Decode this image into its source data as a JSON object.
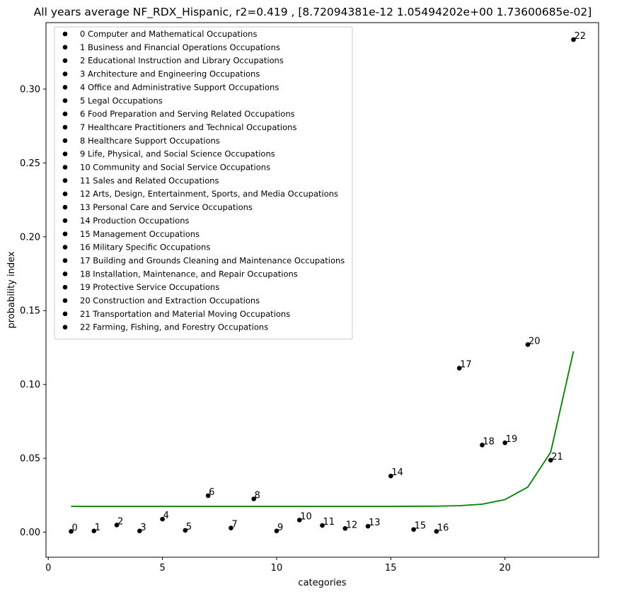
{
  "chart_data": {
    "type": "scatter",
    "title": "All years average NF_RDX_Hispanic, r2=0.419 , [8.72094381e-12 1.05494202e+00 1.73600685e-02]",
    "xlabel": "categories",
    "ylabel": "probability index",
    "xlim": [
      -0.1,
      24.1
    ],
    "ylim": [
      -0.017,
      0.345
    ],
    "xticks": [
      0,
      5,
      10,
      15,
      20
    ],
    "yticks": [
      0.0,
      0.05,
      0.1,
      0.15,
      0.2,
      0.25,
      0.3
    ],
    "ytick_labels": [
      "0.00",
      "0.05",
      "0.10",
      "0.15",
      "0.20",
      "0.25",
      "0.30"
    ],
    "grid": false,
    "legend_position": "top-left",
    "marker_color": "#000000",
    "fit_color": "#008000",
    "points": [
      {
        "label": "0",
        "x": 1,
        "y": 0.0005
      },
      {
        "label": "1",
        "x": 2,
        "y": 0.0008
      },
      {
        "label": "2",
        "x": 3,
        "y": 0.0048
      },
      {
        "label": "3",
        "x": 4,
        "y": 0.0008
      },
      {
        "label": "4",
        "x": 5,
        "y": 0.0088
      },
      {
        "label": "5",
        "x": 6,
        "y": 0.0012
      },
      {
        "label": "6",
        "x": 7,
        "y": 0.0247
      },
      {
        "label": "7",
        "x": 8,
        "y": 0.0028
      },
      {
        "label": "8",
        "x": 9,
        "y": 0.0225
      },
      {
        "label": "9",
        "x": 10,
        "y": 0.0008
      },
      {
        "label": "10",
        "x": 11,
        "y": 0.0082
      },
      {
        "label": "11",
        "x": 12,
        "y": 0.0045
      },
      {
        "label": "12",
        "x": 13,
        "y": 0.0025
      },
      {
        "label": "13",
        "x": 14,
        "y": 0.004
      },
      {
        "label": "14",
        "x": 15,
        "y": 0.038
      },
      {
        "label": "15",
        "x": 16,
        "y": 0.0018
      },
      {
        "label": "16",
        "x": 17,
        "y": 0.0005
      },
      {
        "label": "17",
        "x": 18,
        "y": 0.111
      },
      {
        "label": "18",
        "x": 19,
        "y": 0.059
      },
      {
        "label": "19",
        "x": 20,
        "y": 0.0605
      },
      {
        "label": "20",
        "x": 21,
        "y": 0.127
      },
      {
        "label": "21",
        "x": 22,
        "y": 0.0487
      },
      {
        "label": "22",
        "x": 23,
        "y": 0.3335
      }
    ],
    "fit_line": {
      "x": [
        1,
        2,
        3,
        4,
        5,
        6,
        7,
        8,
        9,
        10,
        11,
        12,
        13,
        14,
        15,
        16,
        17,
        18,
        19,
        20,
        21,
        22,
        23
      ],
      "y": [
        0.0174,
        0.0174,
        0.0174,
        0.0174,
        0.0174,
        0.0174,
        0.0174,
        0.0174,
        0.0174,
        0.0174,
        0.0174,
        0.0174,
        0.0174,
        0.0174,
        0.0174,
        0.0175,
        0.0176,
        0.0179,
        0.0189,
        0.022,
        0.0305,
        0.054,
        0.1225
      ]
    },
    "legend": [
      "0 Computer and Mathematical Occupations",
      "1 Business and Financial Operations Occupations",
      "2 Educational Instruction and Library Occupations",
      "3 Architecture and Engineering Occupations",
      "4 Office and Administrative Support Occupations",
      "5 Legal Occupations",
      "6 Food Preparation and Serving Related Occupations",
      "7 Healthcare Practitioners and Technical Occupations",
      "8 Healthcare Support Occupations",
      "9 Life, Physical, and Social Science Occupations",
      "10 Community and Social Service Occupations",
      "11 Sales and Related Occupations",
      "12 Arts, Design, Entertainment, Sports, and Media Occupations",
      "13 Personal Care and Service Occupations",
      "14 Production Occupations",
      "15 Management Occupations",
      "16 Military Specific Occupations",
      "17 Building and Grounds Cleaning and Maintenance Occupations",
      "18 Installation, Maintenance, and Repair Occupations",
      "19 Protective Service Occupations",
      "20 Construction and Extraction Occupations",
      "21 Transportation and Material Moving Occupations",
      "22 Farming, Fishing, and Forestry Occupations"
    ]
  }
}
